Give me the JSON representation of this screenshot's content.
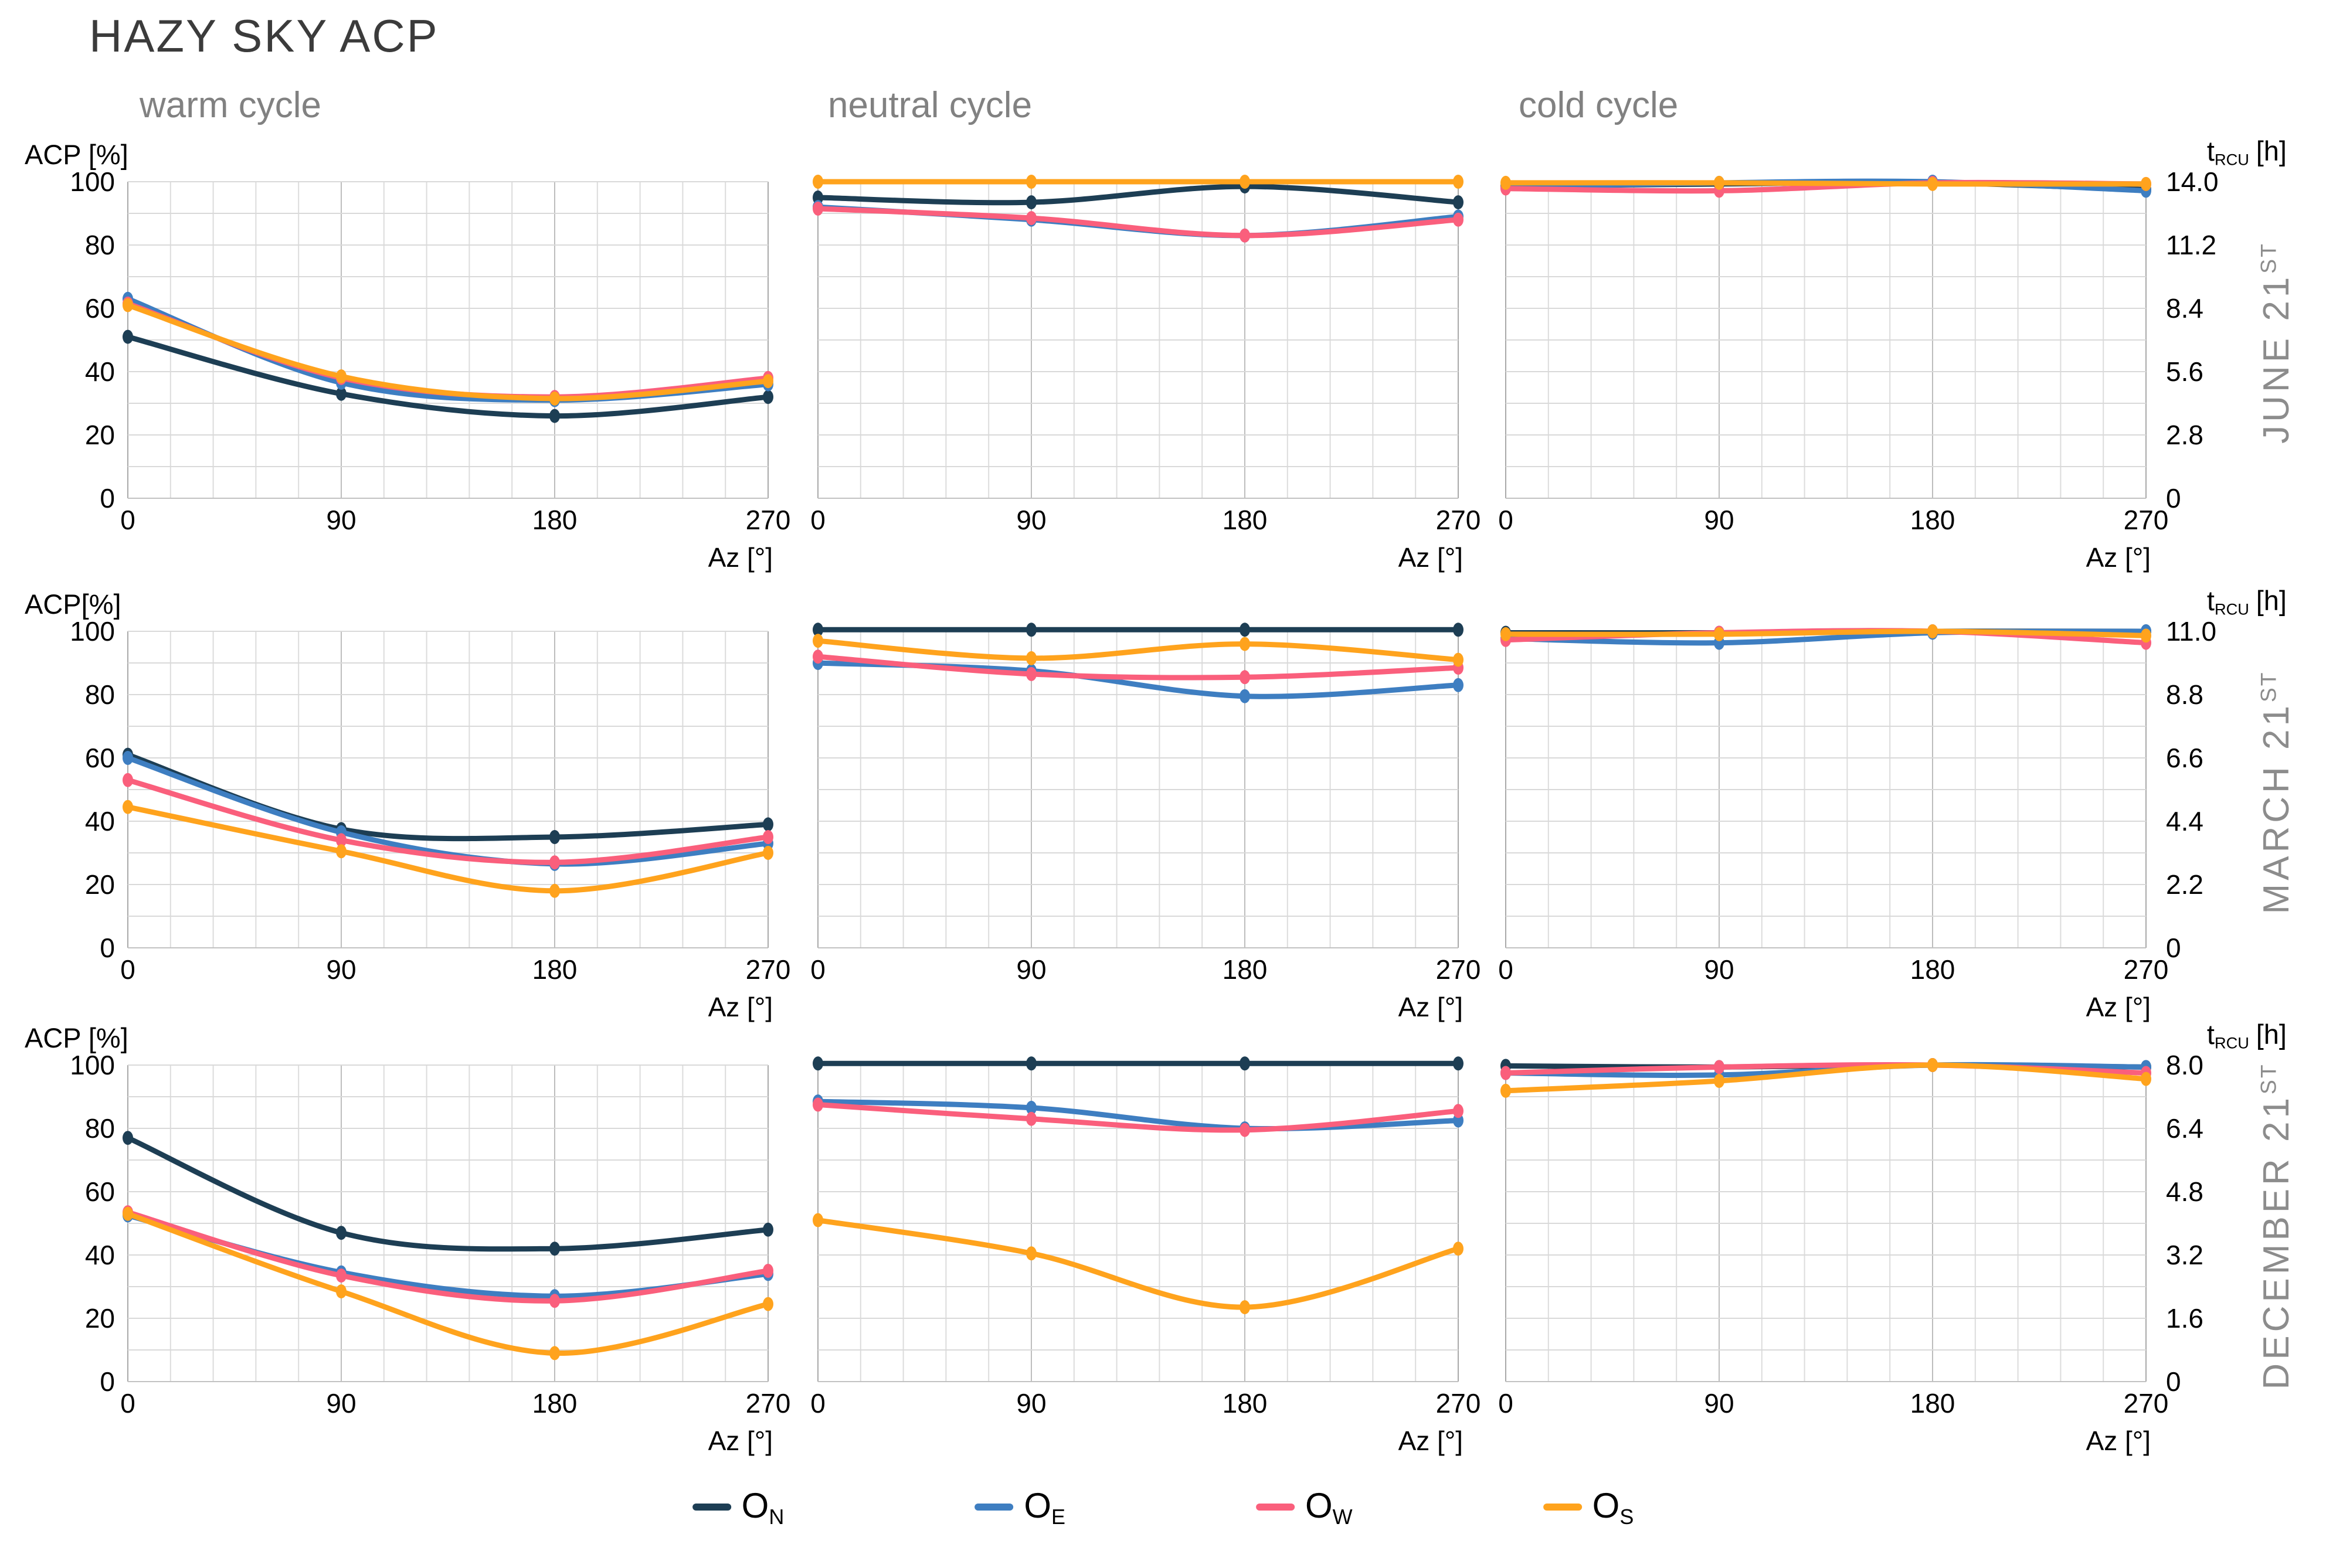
{
  "title": "HAZY SKY ACP",
  "column_headers": {
    "warm": "warm cycle",
    "neutral": "neutral cycle",
    "cold": "cold cycle"
  },
  "rows": {
    "june": {
      "label": "JUNE 21",
      "sup": "ST"
    },
    "march": {
      "label": "MARCH 21",
      "sup": "ST"
    },
    "december": {
      "label": "DECEMBER 21",
      "sup": "ST"
    }
  },
  "axis": {
    "left_axis_labels": [
      "ACP [%]",
      "ACP[%]",
      "ACP [%]"
    ],
    "right_axis_label": {
      "base": "t",
      "sub": "RCU",
      "unit": "[h]"
    },
    "x_axis_label": "Az [°]",
    "x_ticks": [
      "0",
      "90",
      "180",
      "270"
    ],
    "left_ticks": [
      "0",
      "20",
      "40",
      "60",
      "80",
      "100"
    ],
    "right_ticks": {
      "june": [
        "0",
        "2.8",
        "5.6",
        "8.4",
        "11.2",
        "14.0"
      ],
      "march": [
        "0",
        "2.2",
        "4.4",
        "6.6",
        "8.8",
        "11.0"
      ],
      "december": [
        "0",
        "1.6",
        "3.2",
        "4.8",
        "6.4",
        "8.0"
      ]
    }
  },
  "legend": [
    {
      "id": "O_N",
      "label": "O",
      "sub": "N",
      "color": "#1d3e54"
    },
    {
      "id": "O_E",
      "label": "O",
      "sub": "E",
      "color": "#3e7ec1"
    },
    {
      "id": "O_W",
      "label": "O",
      "sub": "W",
      "color": "#fa5f7c"
    },
    {
      "id": "O_S",
      "label": "O",
      "sub": "S",
      "color": "#ffa31d"
    }
  ],
  "chart_data": [
    {
      "row": "june",
      "cycle": "warm",
      "type": "line",
      "y_axis": "ACP [%]",
      "ymin": 0,
      "ymax": 100,
      "x": [
        0,
        90,
        180,
        270
      ],
      "series": [
        {
          "id": "O_N",
          "values": [
            51,
            33,
            26,
            32
          ]
        },
        {
          "id": "O_E",
          "values": [
            63,
            36.5,
            31,
            36
          ]
        },
        {
          "id": "O_W",
          "values": [
            61.5,
            38,
            32,
            38
          ]
        },
        {
          "id": "O_S",
          "values": [
            61,
            38.5,
            31.5,
            37
          ]
        }
      ]
    },
    {
      "row": "june",
      "cycle": "neutral",
      "type": "line",
      "y_axis": "ACP [%]",
      "ymin": 0,
      "ymax": 100,
      "x": [
        0,
        90,
        180,
        270
      ],
      "series": [
        {
          "id": "O_N",
          "values": [
            95,
            93.5,
            98.5,
            93.5
          ]
        },
        {
          "id": "O_E",
          "values": [
            92,
            88,
            83,
            89
          ]
        },
        {
          "id": "O_W",
          "values": [
            91.5,
            88.5,
            83,
            88
          ]
        },
        {
          "id": "O_S",
          "values": [
            100,
            100,
            100,
            100
          ]
        }
      ]
    },
    {
      "row": "june",
      "cycle": "cold",
      "type": "line",
      "y_axis": "t_RCU [h]",
      "ymin": 0,
      "ymax": 14,
      "x": [
        0,
        90,
        180,
        270
      ],
      "series": [
        {
          "id": "O_N",
          "values": [
            13.8,
            13.9,
            13.95,
            13.65
          ]
        },
        {
          "id": "O_E",
          "values": [
            13.75,
            13.95,
            14.0,
            13.6
          ]
        },
        {
          "id": "O_W",
          "values": [
            13.7,
            13.6,
            13.95,
            13.9
          ]
        },
        {
          "id": "O_S",
          "values": [
            13.95,
            13.95,
            13.9,
            13.9
          ]
        }
      ]
    },
    {
      "row": "march",
      "cycle": "warm",
      "type": "line",
      "y_axis": "ACP [%]",
      "ymin": 0,
      "ymax": 100,
      "x": [
        0,
        90,
        180,
        270
      ],
      "series": [
        {
          "id": "O_N",
          "values": [
            61,
            37.5,
            35,
            39
          ]
        },
        {
          "id": "O_E",
          "values": [
            60,
            36.5,
            26.5,
            33
          ]
        },
        {
          "id": "O_W",
          "values": [
            53,
            34,
            27,
            35
          ]
        },
        {
          "id": "O_S",
          "values": [
            44.5,
            30.5,
            18,
            30
          ]
        }
      ]
    },
    {
      "row": "march",
      "cycle": "neutral",
      "type": "line",
      "y_axis": "ACP [%]",
      "ymin": 0,
      "ymax": 100,
      "x": [
        0,
        90,
        180,
        270
      ],
      "series": [
        {
          "id": "O_N",
          "values": [
            100.5,
            100.5,
            100.5,
            100.5
          ]
        },
        {
          "id": "O_E",
          "values": [
            90,
            87.5,
            79.5,
            83
          ]
        },
        {
          "id": "O_W",
          "values": [
            92,
            86.5,
            85.5,
            88.5
          ]
        },
        {
          "id": "O_S",
          "values": [
            97,
            91.5,
            96,
            91
          ]
        }
      ]
    },
    {
      "row": "march",
      "cycle": "cold",
      "type": "line",
      "y_axis": "t_RCU [h]",
      "ymin": 0,
      "ymax": 11,
      "x": [
        0,
        90,
        180,
        270
      ],
      "series": [
        {
          "id": "O_N",
          "values": [
            10.95,
            10.95,
            11.0,
            11.0
          ]
        },
        {
          "id": "O_E",
          "values": [
            10.75,
            10.6,
            10.95,
            11.0
          ]
        },
        {
          "id": "O_W",
          "values": [
            10.7,
            10.95,
            11.0,
            10.6
          ]
        },
        {
          "id": "O_S",
          "values": [
            10.9,
            10.9,
            11.0,
            10.85
          ]
        }
      ]
    },
    {
      "row": "december",
      "cycle": "warm",
      "type": "line",
      "y_axis": "ACP [%]",
      "ymin": 0,
      "ymax": 100,
      "x": [
        0,
        90,
        180,
        270
      ],
      "series": [
        {
          "id": "O_N",
          "values": [
            77,
            47,
            42,
            48
          ]
        },
        {
          "id": "O_E",
          "values": [
            52.5,
            34.5,
            27,
            34
          ]
        },
        {
          "id": "O_W",
          "values": [
            53.5,
            33.5,
            25.5,
            35
          ]
        },
        {
          "id": "O_S",
          "values": [
            53,
            28.5,
            9,
            24.5
          ]
        }
      ]
    },
    {
      "row": "december",
      "cycle": "neutral",
      "type": "line",
      "y_axis": "ACP [%]",
      "ymin": 0,
      "ymax": 100,
      "x": [
        0,
        90,
        180,
        270
      ],
      "series": [
        {
          "id": "O_N",
          "values": [
            100.5,
            100.5,
            100.5,
            100.5
          ]
        },
        {
          "id": "O_E",
          "values": [
            88.5,
            86.5,
            80,
            82.5
          ]
        },
        {
          "id": "O_W",
          "values": [
            87.5,
            83,
            79.5,
            85.5
          ]
        },
        {
          "id": "O_S",
          "values": [
            51,
            40.5,
            23.5,
            42
          ]
        }
      ]
    },
    {
      "row": "december",
      "cycle": "cold",
      "type": "line",
      "y_axis": "t_RCU [h]",
      "ymin": 0,
      "ymax": 8,
      "x": [
        0,
        90,
        180,
        270
      ],
      "series": [
        {
          "id": "O_N",
          "values": [
            7.98,
            7.95,
            8.0,
            7.95
          ]
        },
        {
          "id": "O_E",
          "values": [
            7.8,
            7.75,
            8.0,
            7.95
          ]
        },
        {
          "id": "O_W",
          "values": [
            7.8,
            7.95,
            8.0,
            7.8
          ]
        },
        {
          "id": "O_S",
          "values": [
            7.35,
            7.6,
            8.0,
            7.65
          ]
        }
      ]
    }
  ]
}
